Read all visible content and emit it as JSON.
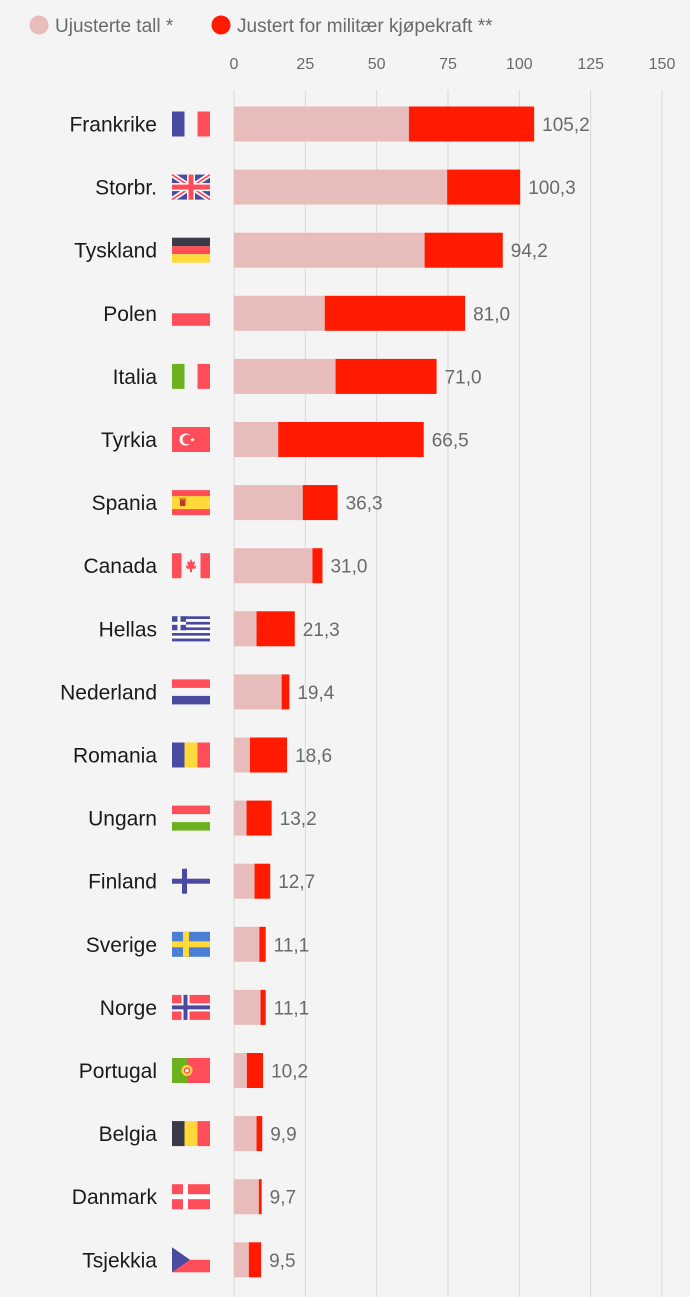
{
  "chart_data": {
    "type": "bar",
    "orientation": "horizontal",
    "stacked": true,
    "xlim": [
      0,
      150
    ],
    "xticks": [
      "0",
      "25",
      "50",
      "75",
      "100",
      "125",
      "150"
    ],
    "grid": true,
    "legend_position": "top-left",
    "colors": {
      "unadjusted": "#e9bcbc",
      "adjusted": "#ff1a00"
    },
    "series": [
      {
        "name": "Ujusterte tall *"
      },
      {
        "name": "Justert for militær kjøpekraft **"
      }
    ],
    "categories": [
      "Frankrike",
      "Storbr.",
      "Tyskland",
      "Polen",
      "Italia",
      "Tyrkia",
      "Spania",
      "Canada",
      "Hellas",
      "Nederland",
      "Romania",
      "Ungarn",
      "Finland",
      "Sverige",
      "Norge",
      "Portugal",
      "Belgia",
      "Danmark",
      "Tsjekkia"
    ],
    "flags": [
      "flag-france",
      "flag-uk",
      "flag-germany",
      "flag-poland",
      "flag-italy",
      "flag-turkey",
      "flag-spain",
      "flag-canada",
      "flag-greece",
      "flag-netherlands",
      "flag-romania",
      "flag-hungary",
      "flag-finland",
      "flag-sweden",
      "flag-norway",
      "flag-portugal",
      "flag-belgium",
      "flag-denmark",
      "flag-czechia"
    ],
    "unadjusted_values": [
      61.3,
      74.7,
      66.8,
      31.8,
      35.6,
      15.5,
      24.1,
      27.5,
      7.9,
      16.7,
      5.6,
      4.4,
      7.2,
      8.9,
      9.3,
      4.5,
      7.9,
      8.7,
      5.2
    ],
    "adjusted_values": [
      105.2,
      100.3,
      94.2,
      81.0,
      71.0,
      66.5,
      36.3,
      31.0,
      21.3,
      19.4,
      18.6,
      13.2,
      12.7,
      11.1,
      11.1,
      10.2,
      9.9,
      9.7,
      9.5
    ],
    "value_labels": [
      "105,2",
      "100,3",
      "94,2",
      "81,0",
      "71,0",
      "66,5",
      "36,3",
      "31,0",
      "21,3",
      "19,4",
      "18,6",
      "13,2",
      "12,7",
      "11,1",
      "11,1",
      "10,2",
      "9,9",
      "9,7",
      "9,5"
    ]
  }
}
